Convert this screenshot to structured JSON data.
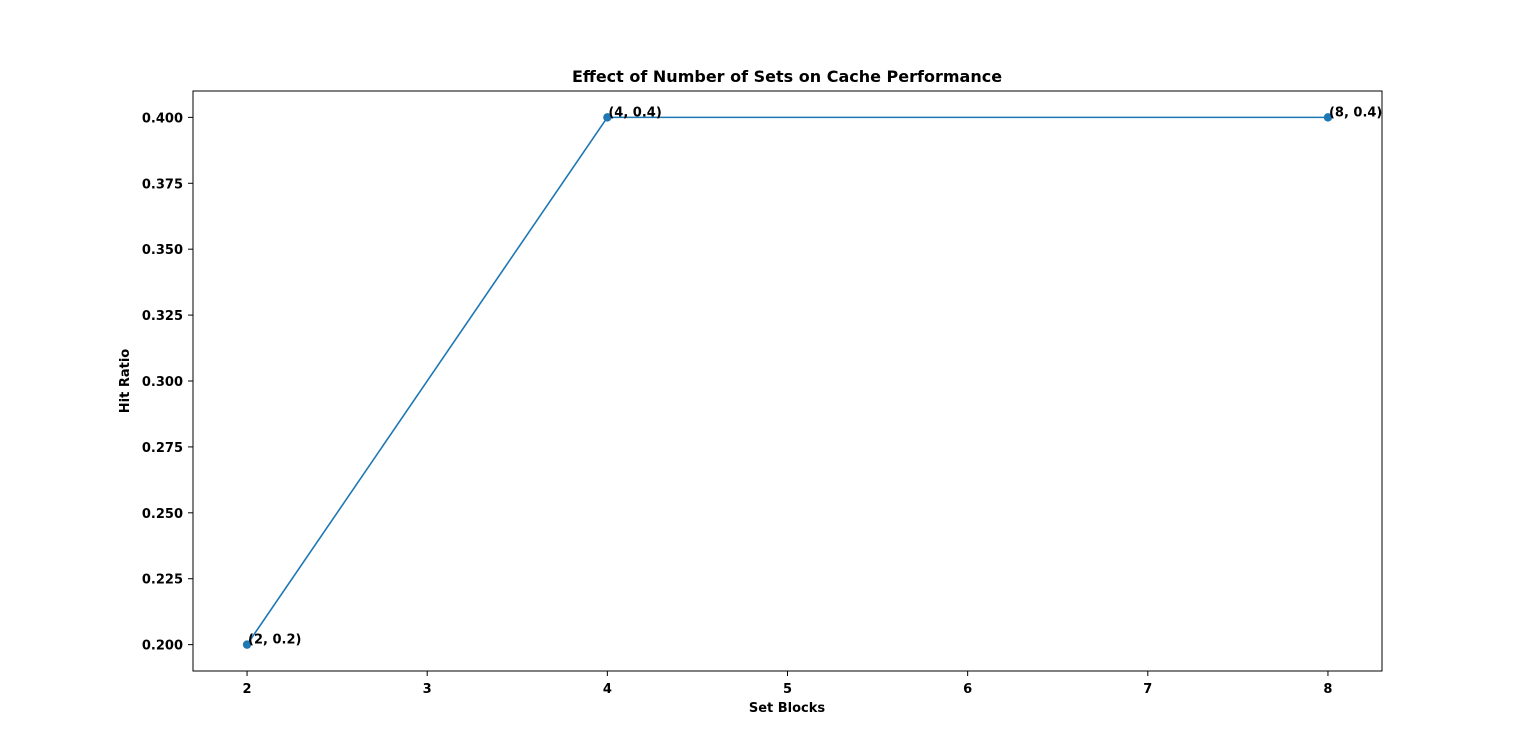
{
  "chart_data": {
    "type": "line",
    "title": "Effect of Number of Sets on Cache Performance",
    "xlabel": "Set Blocks",
    "ylabel": "Hit Ratio",
    "xlim": [
      1.7,
      8.3
    ],
    "ylim": [
      0.19,
      0.41
    ],
    "x_ticks": [
      2,
      3,
      4,
      5,
      6,
      7,
      8
    ],
    "x_tick_labels": [
      "2",
      "3",
      "4",
      "5",
      "6",
      "7",
      "8"
    ],
    "y_ticks": [
      0.2,
      0.225,
      0.25,
      0.275,
      0.3,
      0.325,
      0.35,
      0.375,
      0.4
    ],
    "y_tick_labels": [
      "0.200",
      "0.225",
      "0.250",
      "0.275",
      "0.300",
      "0.325",
      "0.350",
      "0.375",
      "0.400"
    ],
    "grid": false,
    "series": [
      {
        "color": "#1f77b4",
        "marker": "circle",
        "x": [
          2,
          4,
          8
        ],
        "y": [
          0.2,
          0.4,
          0.4
        ]
      }
    ],
    "annotations": [
      {
        "x": 2,
        "y": 0.2,
        "text": "(2, 0.2)"
      },
      {
        "x": 4,
        "y": 0.4,
        "text": "(4, 0.4)"
      },
      {
        "x": 8,
        "y": 0.4,
        "text": "(8, 0.4)"
      }
    ]
  }
}
